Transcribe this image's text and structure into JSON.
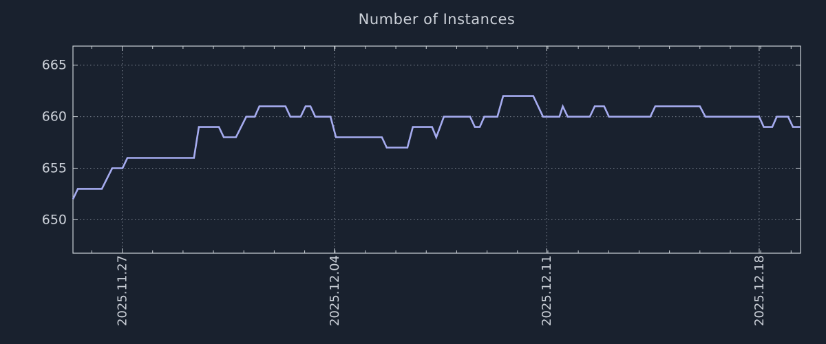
{
  "title": "Number of Instances",
  "colors": {
    "background": "#19212e",
    "line": "#a6acf0",
    "border": "#ccd2d8",
    "grid": "#aeb6c2",
    "text": "#ccd1d9"
  },
  "chart_data": {
    "type": "line",
    "title": "Number of Instances",
    "xlabel": "",
    "ylabel": "",
    "legend": "none",
    "grid": "dotted",
    "x_unit": "days-from-left-edge",
    "x_range": [
      0,
      23.93
    ],
    "x_ticks": [
      {
        "label": "2025.11.27",
        "t": 1.62
      },
      {
        "label": "2025.12.04",
        "t": 8.6
      },
      {
        "label": "2025.12.11",
        "t": 15.58
      },
      {
        "label": "2025.12.18",
        "t": 22.57
      }
    ],
    "x_minor_tick_interval": 1,
    "ylim": [
      646.75,
      666.85
    ],
    "y_ticks": [
      650,
      655,
      660,
      665
    ],
    "series": [
      {
        "name": "instances",
        "color": "#a6acf0",
        "points": [
          [
            0.0,
            652
          ],
          [
            0.16,
            653
          ],
          [
            0.95,
            653
          ],
          [
            1.29,
            655
          ],
          [
            1.63,
            655
          ],
          [
            1.79,
            656
          ],
          [
            3.98,
            656
          ],
          [
            4.14,
            659
          ],
          [
            4.8,
            659
          ],
          [
            4.96,
            658
          ],
          [
            5.36,
            658
          ],
          [
            5.7,
            660
          ],
          [
            5.98,
            660
          ],
          [
            6.13,
            661
          ],
          [
            6.99,
            661
          ],
          [
            7.15,
            660
          ],
          [
            7.49,
            660
          ],
          [
            7.65,
            661
          ],
          [
            7.81,
            661
          ],
          [
            7.97,
            660
          ],
          [
            8.47,
            660
          ],
          [
            8.65,
            658
          ],
          [
            10.16,
            658
          ],
          [
            10.32,
            657
          ],
          [
            11.0,
            657
          ],
          [
            11.18,
            659
          ],
          [
            11.81,
            659
          ],
          [
            11.95,
            658
          ],
          [
            12.2,
            660
          ],
          [
            13.06,
            660
          ],
          [
            13.22,
            659
          ],
          [
            13.38,
            659
          ],
          [
            13.53,
            660
          ],
          [
            13.96,
            660
          ],
          [
            14.15,
            662
          ],
          [
            15.14,
            662
          ],
          [
            15.46,
            660
          ],
          [
            16.0,
            660
          ],
          [
            16.11,
            661
          ],
          [
            16.27,
            660
          ],
          [
            17.0,
            660
          ],
          [
            17.16,
            661
          ],
          [
            17.47,
            661
          ],
          [
            17.63,
            660
          ],
          [
            18.99,
            660
          ],
          [
            19.15,
            661
          ],
          [
            20.62,
            661
          ],
          [
            20.8,
            660
          ],
          [
            22.57,
            660
          ],
          [
            22.72,
            659
          ],
          [
            23.0,
            659
          ],
          [
            23.15,
            660
          ],
          [
            23.52,
            660
          ],
          [
            23.68,
            659
          ],
          [
            23.93,
            659
          ]
        ]
      }
    ]
  }
}
